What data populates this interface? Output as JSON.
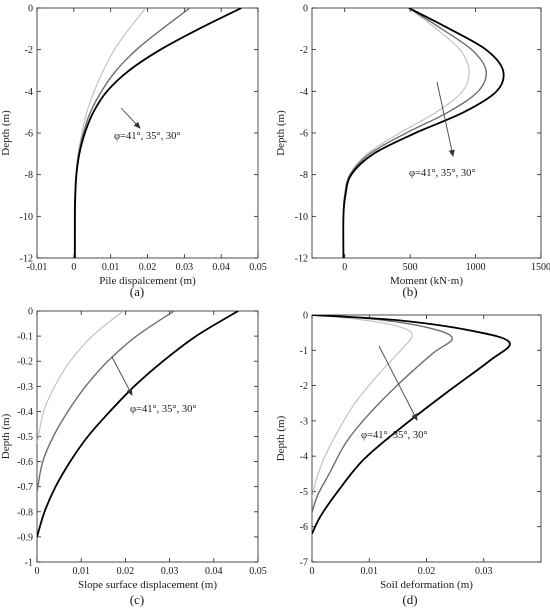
{
  "chart_data": [
    {
      "type": "line",
      "panel_label": "(a)",
      "xlabel": "Pile dispalcement (m)",
      "ylabel": "Depth (m)",
      "xlim": [
        -0.01,
        0.05
      ],
      "ylim": [
        -12,
        0
      ],
      "xticks": [
        "-0.01",
        "0",
        "0.01",
        "0.02",
        "0.03",
        "0.04",
        "0.05"
      ],
      "yticks": [
        "0",
        "-2",
        "-4",
        "-6",
        "-8",
        "-10",
        "-12"
      ],
      "annotation": "φ=41°, 35°, 30°",
      "series": [
        {
          "color": "#c4c4c4",
          "width": 1.2,
          "x": [
            0.0195,
            0.015,
            0.011,
            0.008,
            0.0055,
            0.0035,
            0.0022,
            0.0012,
            0.0006,
            0.0003,
            0.0002,
            0.0002
          ],
          "y": [
            0,
            -1,
            -2,
            -3,
            -4,
            -5,
            -6,
            -7,
            -8,
            -9,
            -10,
            -12
          ]
        },
        {
          "color": "#6e6e6e",
          "width": 1.4,
          "x": [
            0.0315,
            0.024,
            0.017,
            0.0115,
            0.0075,
            0.0045,
            0.0026,
            0.0013,
            0.0006,
            0.0003,
            0.0002,
            0.0002
          ],
          "y": [
            0,
            -1,
            -2,
            -3,
            -4,
            -5,
            -6,
            -7,
            -8,
            -9,
            -10,
            -12
          ]
        },
        {
          "color": "#000000",
          "width": 1.8,
          "x": [
            0.0455,
            0.034,
            0.0235,
            0.015,
            0.009,
            0.0053,
            0.003,
            0.0015,
            0.0007,
            0.0004,
            0.0003,
            0.0003
          ],
          "y": [
            0,
            -1,
            -2,
            -3,
            -4,
            -5,
            -6,
            -7,
            -8,
            -9,
            -10,
            -12
          ]
        }
      ]
    },
    {
      "type": "line",
      "panel_label": "(b)",
      "xlabel": "Moment (kN·m)",
      "ylabel": "Depth (m)",
      "xlim": [
        -250,
        1500
      ],
      "ylim": [
        -12,
        0
      ],
      "xticks": [
        "0",
        "500",
        "1000",
        "1500"
      ],
      "yticks": [
        "0",
        "-2",
        "-4",
        "-6",
        "-8",
        "-10",
        "-12"
      ],
      "annotation": "φ=41°, 35°, 30°",
      "series": [
        {
          "color": "#c4c4c4",
          "width": 1.2,
          "x": [
            490,
            700,
            880,
            950,
            900,
            700,
            420,
            170,
            40,
            0,
            -10,
            -10
          ],
          "y": [
            0,
            -1,
            -2,
            -3,
            -4,
            -5,
            -6,
            -7,
            -8,
            -9,
            -10,
            -12
          ]
        },
        {
          "color": "#6e6e6e",
          "width": 1.4,
          "x": [
            490,
            740,
            970,
            1080,
            1020,
            790,
            470,
            190,
            40,
            0,
            -10,
            -10
          ],
          "y": [
            0,
            -1,
            -2,
            -3,
            -4,
            -5,
            -6,
            -7,
            -8,
            -9,
            -10,
            -12
          ]
        },
        {
          "color": "#000000",
          "width": 1.8,
          "x": [
            490,
            800,
            1080,
            1210,
            1160,
            910,
            540,
            220,
            50,
            5,
            -10,
            -10
          ],
          "y": [
            0,
            -1,
            -2,
            -3,
            -4,
            -5,
            -6,
            -7,
            -8,
            -9,
            -10,
            -12
          ]
        }
      ]
    },
    {
      "type": "line",
      "panel_label": "(c)",
      "xlabel": "Slope surface displacement (m)",
      "ylabel": "Depth (m)",
      "xlim": [
        0,
        0.05
      ],
      "ylim": [
        -1,
        0
      ],
      "xticks": [
        "0",
        "0.01",
        "0.02",
        "0.03",
        "0.04",
        "0.05"
      ],
      "yticks": [
        "0",
        "-0.1",
        "-0.2",
        "-0.3",
        "-0.4",
        "-0.5",
        "-0.6",
        "-0.7",
        "-0.8",
        "-0.9",
        "-1"
      ],
      "annotation": "φ=41°, 35°, 30°",
      "series": [
        {
          "color": "#c4c4c4",
          "width": 1.2,
          "x": [
            0.0195,
            0.0125,
            0.0075,
            0.004,
            0.0015,
            0.0
          ],
          "y": [
            0,
            -0.1,
            -0.2,
            -0.3,
            -0.4,
            -0.53
          ]
        },
        {
          "color": "#6e6e6e",
          "width": 1.4,
          "x": [
            0.031,
            0.0225,
            0.016,
            0.011,
            0.007,
            0.0037,
            0.0013,
            0.0
          ],
          "y": [
            0,
            -0.1,
            -0.2,
            -0.3,
            -0.4,
            -0.5,
            -0.6,
            -0.72
          ]
        },
        {
          "color": "#000000",
          "width": 1.8,
          "x": [
            0.0455,
            0.036,
            0.0285,
            0.022,
            0.0165,
            0.0115,
            0.0075,
            0.0042,
            0.0017,
            0.0
          ],
          "y": [
            0,
            -0.1,
            -0.2,
            -0.3,
            -0.4,
            -0.5,
            -0.6,
            -0.7,
            -0.8,
            -0.9
          ]
        }
      ]
    },
    {
      "type": "line",
      "panel_label": "(d)",
      "xlabel": "Soil deformation (m)",
      "ylabel": "Depth (m)",
      "xlim": [
        0,
        0.04
      ],
      "ylim": [
        -7,
        0
      ],
      "xticks": [
        "0",
        "0.01",
        "0.02",
        "0.03"
      ],
      "yticks": [
        "0",
        "-1",
        "-2",
        "-3",
        "-4",
        "-5",
        "-6",
        "-7"
      ],
      "annotation": "φ=41°, 35°, 30°",
      "series": [
        {
          "color": "#c4c4c4",
          "width": 1.2,
          "x": [
            0.0,
            0.008,
            0.0145,
            0.0175,
            0.0155,
            0.0115,
            0.0075,
            0.0045,
            0.002,
            0.0007,
            0.0
          ],
          "y": [
            0,
            -0.12,
            -0.3,
            -0.55,
            -1.0,
            -1.7,
            -2.5,
            -3.3,
            -4.1,
            -4.7,
            -5.2
          ]
        },
        {
          "color": "#6e6e6e",
          "width": 1.4,
          "x": [
            0.0,
            0.011,
            0.02,
            0.0245,
            0.021,
            0.0155,
            0.01,
            0.006,
            0.003,
            0.001,
            0.0
          ],
          "y": [
            0,
            -0.12,
            -0.35,
            -0.65,
            -1.1,
            -1.9,
            -2.8,
            -3.6,
            -4.5,
            -5.1,
            -5.6
          ]
        },
        {
          "color": "#000000",
          "width": 1.8,
          "x": [
            0.0,
            0.015,
            0.028,
            0.0345,
            0.031,
            0.0235,
            0.0155,
            0.009,
            0.0045,
            0.0015,
            0.0
          ],
          "y": [
            0,
            -0.15,
            -0.45,
            -0.78,
            -1.3,
            -2.2,
            -3.2,
            -4.1,
            -5.0,
            -5.7,
            -6.2
          ]
        }
      ]
    }
  ]
}
